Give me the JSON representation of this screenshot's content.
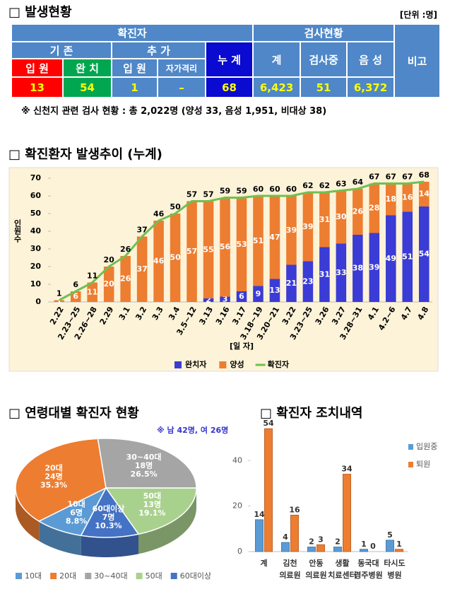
{
  "section1": {
    "title": "□ 발생현황",
    "unit": "[단위 :명]",
    "table": {
      "header": {
        "confirmed": "확진자",
        "tests": "검사현황",
        "remarks": "비고",
        "existing": "기 존",
        "added": "추 가",
        "total": "누 계",
        "test_total": "계",
        "testing": "검사중",
        "negative": "음 성",
        "hosp": "입 원",
        "recovered": "완 치",
        "added_hosp": "입 원",
        "self_isolation": "자가격리"
      },
      "row": [
        "13",
        "54",
        "1",
        "–",
        "68",
        "6,423",
        "51",
        "6,372"
      ]
    },
    "note": "※ 신천지 관련 검사 현황 : 총 2,022명 (양성 33, 음성 1,951, 비대상 38)"
  },
  "chart_data": [
    {
      "type": "bar",
      "stacked": true,
      "title": "□ 확진환자 발생추이 (누계)",
      "ylabel": "인원수",
      "xlabel": "[일 자]",
      "background": "#fdf3d8",
      "categories": [
        "2.22",
        "2.23~25",
        "2.26~28",
        "2.29",
        "3.1",
        "3.2",
        "3.3",
        "3.4",
        "3.5~12",
        "3.13",
        "3.16",
        "3.17",
        "3.18~19",
        "3.20~21",
        "3.22",
        "3.23~25",
        "3.26",
        "3.27",
        "3.28~31",
        "4.1",
        "4.2~6",
        "4.7",
        "4.8"
      ],
      "ylim": [
        0,
        70
      ],
      "yticks": [
        0,
        10,
        20,
        30,
        40,
        50,
        60,
        70
      ],
      "legend": "bottom",
      "series": [
        {
          "name": "완치자",
          "type": "bar",
          "color": "#3b3bd6",
          "values": [
            null,
            null,
            null,
            null,
            null,
            null,
            null,
            null,
            null,
            2,
            3,
            6,
            9,
            13,
            21,
            23,
            31,
            33,
            38,
            39,
            49,
            51,
            54
          ]
        },
        {
          "name": "양성",
          "type": "bar",
          "color": "#ed7d31",
          "values": [
            1,
            6,
            11,
            20,
            26,
            37,
            46,
            50,
            57,
            55,
            56,
            53,
            51,
            47,
            39,
            39,
            31,
            30,
            26,
            28,
            18,
            16,
            14
          ]
        },
        {
          "name": "확진자",
          "type": "line",
          "color": "#70c050",
          "values": [
            1,
            6,
            11,
            20,
            26,
            37,
            46,
            50,
            57,
            57,
            59,
            59,
            60,
            60,
            60,
            62,
            62,
            63,
            64,
            67,
            67,
            67,
            68
          ]
        }
      ]
    },
    {
      "type": "pie",
      "title": "□ 연령대별 확진자 현황",
      "note": "※ 남 42명, 여 26명",
      "categories": [
        "10대",
        "20대",
        "30~40대",
        "50대",
        "60대이상"
      ],
      "values": [
        6,
        24,
        18,
        13,
        7
      ],
      "value_labels": [
        "6명",
        "24명",
        "18명",
        "13명",
        "7명"
      ],
      "percents": [
        8.8,
        35.3,
        26.5,
        19.1,
        10.3
      ],
      "percent_labels": [
        "8.8%",
        "35.3%",
        "26.5%",
        "19.1%",
        "10.3%"
      ],
      "colors": [
        "#5b9bd5",
        "#ed7d31",
        "#a5a5a5",
        "#a9d18e",
        "#4472c4"
      ],
      "legend": "bottom"
    },
    {
      "type": "bar",
      "title": "□ 확진자 조치내역",
      "categories": [
        [
          "계"
        ],
        [
          "김천",
          "의료원"
        ],
        [
          "안동",
          "의료원"
        ],
        [
          "생활",
          "치료센터"
        ],
        [
          "동국대",
          "경주병원"
        ],
        [
          "타시도",
          "병원"
        ]
      ],
      "ylim": [
        0,
        55
      ],
      "yticks": [
        0,
        20,
        40
      ],
      "legend": "right",
      "series": [
        {
          "name": "입원중",
          "color": "#5b9bd5",
          "values": [
            14,
            4,
            2,
            2,
            1,
            5
          ]
        },
        {
          "name": "퇴원",
          "color": "#ed7d31",
          "values": [
            54,
            16,
            3,
            34,
            0,
            1
          ]
        }
      ]
    }
  ]
}
